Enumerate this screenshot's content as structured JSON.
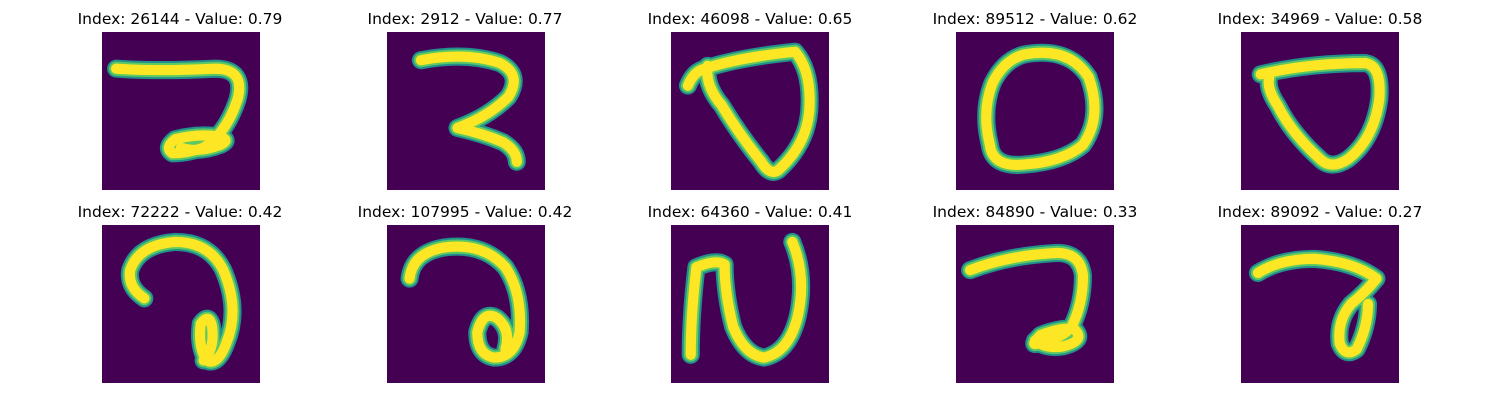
{
  "colors": {
    "background": "#440154",
    "stroke_outer": "#21908d",
    "stroke_mid": "#5ec962",
    "stroke_core": "#fde725"
  },
  "panels": [
    {
      "title": "Index: 26144 - Value: 0.79",
      "glyph": "digit-like-a-loop"
    },
    {
      "title": "Index: 2912 - Value: 0.77",
      "glyph": "digit-like-z-curve"
    },
    {
      "title": "Index: 46098 - Value: 0.65",
      "glyph": "digit-like-triangle"
    },
    {
      "title": "Index: 89512 - Value: 0.62",
      "glyph": "digit-like-zero"
    },
    {
      "title": "Index: 34969 - Value: 0.58",
      "glyph": "digit-like-inverted-triangle"
    },
    {
      "title": "Index: 72222 - Value: 0.42",
      "glyph": "digit-like-hook"
    },
    {
      "title": "Index: 107995 - Value: 0.42",
      "glyph": "digit-like-a-loop"
    },
    {
      "title": "Index: 64360 - Value: 0.41",
      "glyph": "digit-like-n"
    },
    {
      "title": "Index: 84890 - Value: 0.33",
      "glyph": "digit-like-a-loop"
    },
    {
      "title": "Index: 89092 - Value: 0.27",
      "glyph": "digit-like-a-loop"
    }
  ]
}
